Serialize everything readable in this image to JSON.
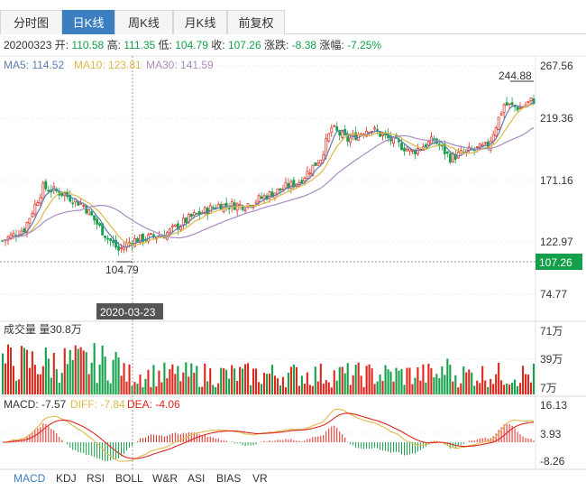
{
  "tabs": [
    {
      "label": "分时图",
      "active": false
    },
    {
      "label": "日K线",
      "active": true
    },
    {
      "label": "周K线",
      "active": false
    },
    {
      "label": "月K线",
      "active": false
    },
    {
      "label": "前复权",
      "active": false
    }
  ],
  "info": {
    "date": "20200323",
    "open_label": "开:",
    "open": "110.58",
    "high_label": "高:",
    "high": "111.35",
    "low_label": "低:",
    "low": "104.79",
    "close_label": "收:",
    "close": "107.26",
    "change_label": "涨跌:",
    "change": "-8.38",
    "pct_label": "涨幅:",
    "pct": "-7.25%"
  },
  "ma": {
    "ma5_label": "MA5: 114.52",
    "ma10_label": "MA10: 123.81",
    "ma30_label": "MA30: 141.59"
  },
  "price_axis": {
    "ticks": [
      "267.56",
      "219.36",
      "171.16",
      "122.97",
      "74.77"
    ],
    "current": "107.26",
    "max_label": "244.88",
    "min_label": "104.79"
  },
  "crosshair_date": "2020-03-23",
  "volume": {
    "title": "成交量 量30.8万",
    "ticks": [
      "71万",
      "39万",
      "7万"
    ]
  },
  "macd": {
    "macd_label": "MACD: -7.57",
    "diff_label": "DIFF: -7.84",
    "dea_label": "DEA: -4.06",
    "ticks": [
      "16.13",
      "3.93",
      "-8.26"
    ]
  },
  "indicator_tabs": [
    {
      "label": "MACD",
      "active": true
    },
    {
      "label": "KDJ",
      "active": false
    },
    {
      "label": "RSI",
      "active": false
    },
    {
      "label": "BOLL",
      "active": false
    },
    {
      "label": "W&R",
      "active": false
    },
    {
      "label": "ASI",
      "active": false
    },
    {
      "label": "BIAS",
      "active": false
    },
    {
      "label": "VR",
      "active": false
    }
  ],
  "colors": {
    "up": "#e0251b",
    "down": "#14a04a",
    "ma5": "#5b7fb0",
    "ma10": "#e0b84a",
    "ma30": "#a98cc0",
    "accent": "#3c7fc1"
  },
  "chart_data": {
    "type": "candlestick",
    "price_range": [
      74.77,
      267.56
    ],
    "price_key_points": [
      {
        "x": 0,
        "close": 120
      },
      {
        "x": 8,
        "close": 130
      },
      {
        "x": 15,
        "close": 165
      },
      {
        "x": 22,
        "close": 160
      },
      {
        "x": 30,
        "close": 150
      },
      {
        "x": 38,
        "close": 125
      },
      {
        "x": 43,
        "close": 112
      },
      {
        "x": 48,
        "close": 120
      },
      {
        "x": 60,
        "close": 125
      },
      {
        "x": 70,
        "close": 140
      },
      {
        "x": 80,
        "close": 150
      },
      {
        "x": 90,
        "close": 150
      },
      {
        "x": 100,
        "close": 160
      },
      {
        "x": 110,
        "close": 170
      },
      {
        "x": 118,
        "close": 190
      },
      {
        "x": 122,
        "close": 215
      },
      {
        "x": 128,
        "close": 205
      },
      {
        "x": 136,
        "close": 215
      },
      {
        "x": 144,
        "close": 205
      },
      {
        "x": 152,
        "close": 195
      },
      {
        "x": 160,
        "close": 205
      },
      {
        "x": 166,
        "close": 190
      },
      {
        "x": 172,
        "close": 195
      },
      {
        "x": 180,
        "close": 200
      },
      {
        "x": 186,
        "close": 235
      },
      {
        "x": 192,
        "close": 232
      },
      {
        "x": 196,
        "close": 238
      }
    ],
    "volume_range_wan": [
      7,
      71
    ],
    "macd_range": [
      -8.26,
      16.13
    ],
    "marked_high": 244.88,
    "marked_low": 104.79,
    "current_price": 107.26
  }
}
